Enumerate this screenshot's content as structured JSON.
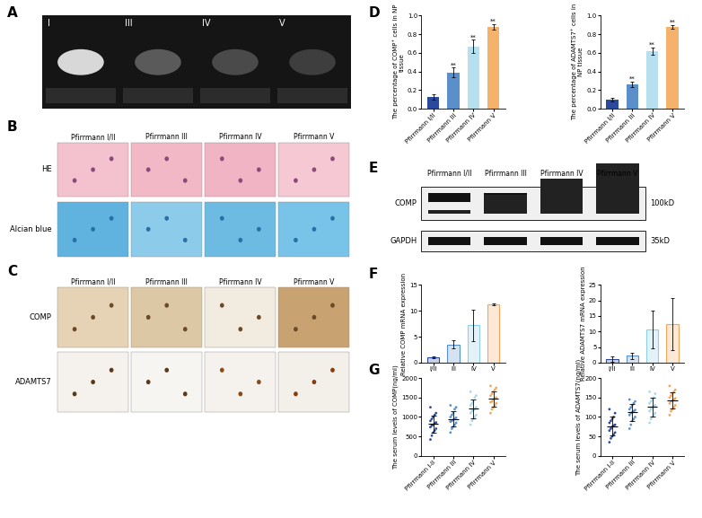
{
  "panels": {
    "A": {
      "label": "A",
      "levels": [
        "I",
        "III",
        "IV",
        "V"
      ]
    },
    "B": {
      "label": "B",
      "columns": [
        "Pfirrmann I/II",
        "Pfirrmann III",
        "Pfirrmann IV",
        "Pfirrmann V"
      ],
      "rows": [
        "HE",
        "Alcian blue"
      ]
    },
    "C": {
      "label": "C",
      "columns": [
        "Pfirrmann I/II",
        "Pfirrmann III",
        "Pfirrmann IV",
        "Pfirrmann V"
      ],
      "rows": [
        "COMP",
        "ADAMTS7"
      ]
    },
    "E": {
      "label": "E",
      "lanes": [
        "Pfirrmann I/II",
        "Pfirrmann III",
        "Pfirrmann IV",
        "Pfirrmann V"
      ],
      "bands": [
        {
          "name": "COMP",
          "size": "100kD"
        },
        {
          "name": "GAPDH",
          "size": "35kD"
        }
      ]
    }
  },
  "chart_data": [
    {
      "panel": "D",
      "type": "bar",
      "categories": [
        "Pfirrmann I/II",
        "Pfirrmann III",
        "Pfirrmann IV",
        "Pfirrmann V"
      ],
      "values": [
        0.13,
        0.39,
        0.67,
        0.88
      ],
      "errors": [
        0.03,
        0.05,
        0.07,
        0.03
      ],
      "significance": [
        null,
        "**",
        "**",
        "**"
      ],
      "colors": [
        "#2b4a9b",
        "#5b8fc9",
        "#b6e0ef",
        "#f5b26b"
      ],
      "ylabel": "The percentage of COMP⁺ cells in NP tissue",
      "ylim": [
        0.0,
        1.0
      ],
      "yticks": [
        0.0,
        0.2,
        0.4,
        0.6,
        0.8,
        1.0
      ]
    },
    {
      "panel": "D",
      "type": "bar",
      "categories": [
        "Pfirrmann I/II",
        "Pfirrmann III",
        "Pfirrmann IV",
        "Pfirrmann V"
      ],
      "values": [
        0.1,
        0.26,
        0.62,
        0.88
      ],
      "errors": [
        0.02,
        0.03,
        0.04,
        0.02
      ],
      "significance": [
        null,
        "**",
        "**",
        "**"
      ],
      "colors": [
        "#2b4a9b",
        "#5b8fc9",
        "#b6e0ef",
        "#f5b26b"
      ],
      "ylabel": "The percentage of ADAMTS7⁺ cells in NP tissue",
      "ylim": [
        0.0,
        1.0
      ],
      "yticks": [
        0.0,
        0.2,
        0.4,
        0.6,
        0.8,
        1.0
      ]
    },
    {
      "panel": "F",
      "type": "bar",
      "categories": [
        "I/II",
        "III",
        "IV",
        "V"
      ],
      "values": [
        1.0,
        3.5,
        7.2,
        11.3
      ],
      "errors": [
        0.2,
        0.8,
        3.0,
        0.2
      ],
      "colors": [
        "#2b4a9b",
        "#5b8fc9",
        "#8fcfe6",
        "#f5a55a"
      ],
      "ylabel": "Relative COMP mRNA expression",
      "ylim": [
        0,
        15
      ],
      "yticks": [
        0,
        5,
        10,
        15
      ]
    },
    {
      "panel": "F",
      "type": "bar",
      "categories": [
        "I/II",
        "III",
        "IV",
        "V"
      ],
      "values": [
        1.1,
        2.2,
        10.6,
        12.4
      ],
      "errors": [
        0.8,
        1.0,
        6.0,
        8.3
      ],
      "colors": [
        "#2b4a9b",
        "#5b8fc9",
        "#8fcfe6",
        "#f5a55a"
      ],
      "ylabel": "Relative ADAMTS7 mRNA expression",
      "ylim": [
        0,
        25
      ],
      "yticks": [
        0,
        5,
        10,
        15,
        20,
        25
      ]
    },
    {
      "panel": "G",
      "type": "dot_plot",
      "categories": [
        "Pfirrmann I-II",
        "Pfirrmann III",
        "Pfirrmann IV",
        "Pfirrmann V"
      ],
      "points": [
        [
          420,
          520,
          600,
          650,
          700,
          740,
          780,
          800,
          830,
          860,
          900,
          950,
          1000,
          1050,
          1100,
          1250
        ],
        [
          600,
          700,
          750,
          800,
          850,
          880,
          900,
          930,
          950,
          980,
          1000,
          1050,
          1100,
          1200,
          1250,
          1300
        ],
        [
          800,
          900,
          950,
          1000,
          1050,
          1100,
          1150,
          1180,
          1200,
          1250,
          1300,
          1350,
          1400,
          1500,
          1550,
          1650
        ],
        [
          1100,
          1200,
          1250,
          1300,
          1350,
          1380,
          1400,
          1450,
          1480,
          1500,
          1550,
          1600,
          1650,
          1700,
          1750,
          1800
        ]
      ],
      "values": [
        822,
        952,
        1208,
        1466
      ],
      "errors": [
        220,
        200,
        240,
        200
      ],
      "colors": [
        "#2b4a9b",
        "#5b8fc9",
        "#a9d8ec",
        "#f5a55a"
      ],
      "ylabel": "The serum levels of COMP(ng/ml)",
      "ylim": [
        0,
        2000
      ],
      "yticks": [
        0,
        500,
        1000,
        1500,
        2000
      ]
    },
    {
      "panel": "G",
      "type": "dot_plot",
      "categories": [
        "Pfirrmann I-II",
        "Pfirrmann III",
        "Pfirrmann IV",
        "Pfirrmann V"
      ],
      "points": [
        [
          35,
          45,
          50,
          55,
          60,
          65,
          70,
          75,
          78,
          80,
          85,
          90,
          95,
          100,
          110,
          120
        ],
        [
          70,
          80,
          90,
          95,
          100,
          105,
          110,
          112,
          115,
          118,
          120,
          125,
          130,
          135,
          140,
          145
        ],
        [
          85,
          95,
          100,
          105,
          110,
          115,
          120,
          125,
          128,
          130,
          135,
          140,
          145,
          150,
          160,
          165
        ],
        [
          105,
          115,
          120,
          125,
          130,
          135,
          140,
          142,
          145,
          148,
          150,
          155,
          160,
          165,
          170,
          180
        ]
      ],
      "values": [
        76,
        112,
        126,
        143
      ],
      "errors": [
        24,
        22,
        24,
        20
      ],
      "colors": [
        "#2b4a9b",
        "#5b8fc9",
        "#a9d8ec",
        "#f5a55a"
      ],
      "ylabel": "The serum levels of ADAMTS7(ng/ml)",
      "ylim": [
        0,
        200
      ],
      "yticks": [
        0,
        50,
        100,
        150,
        200
      ]
    }
  ]
}
